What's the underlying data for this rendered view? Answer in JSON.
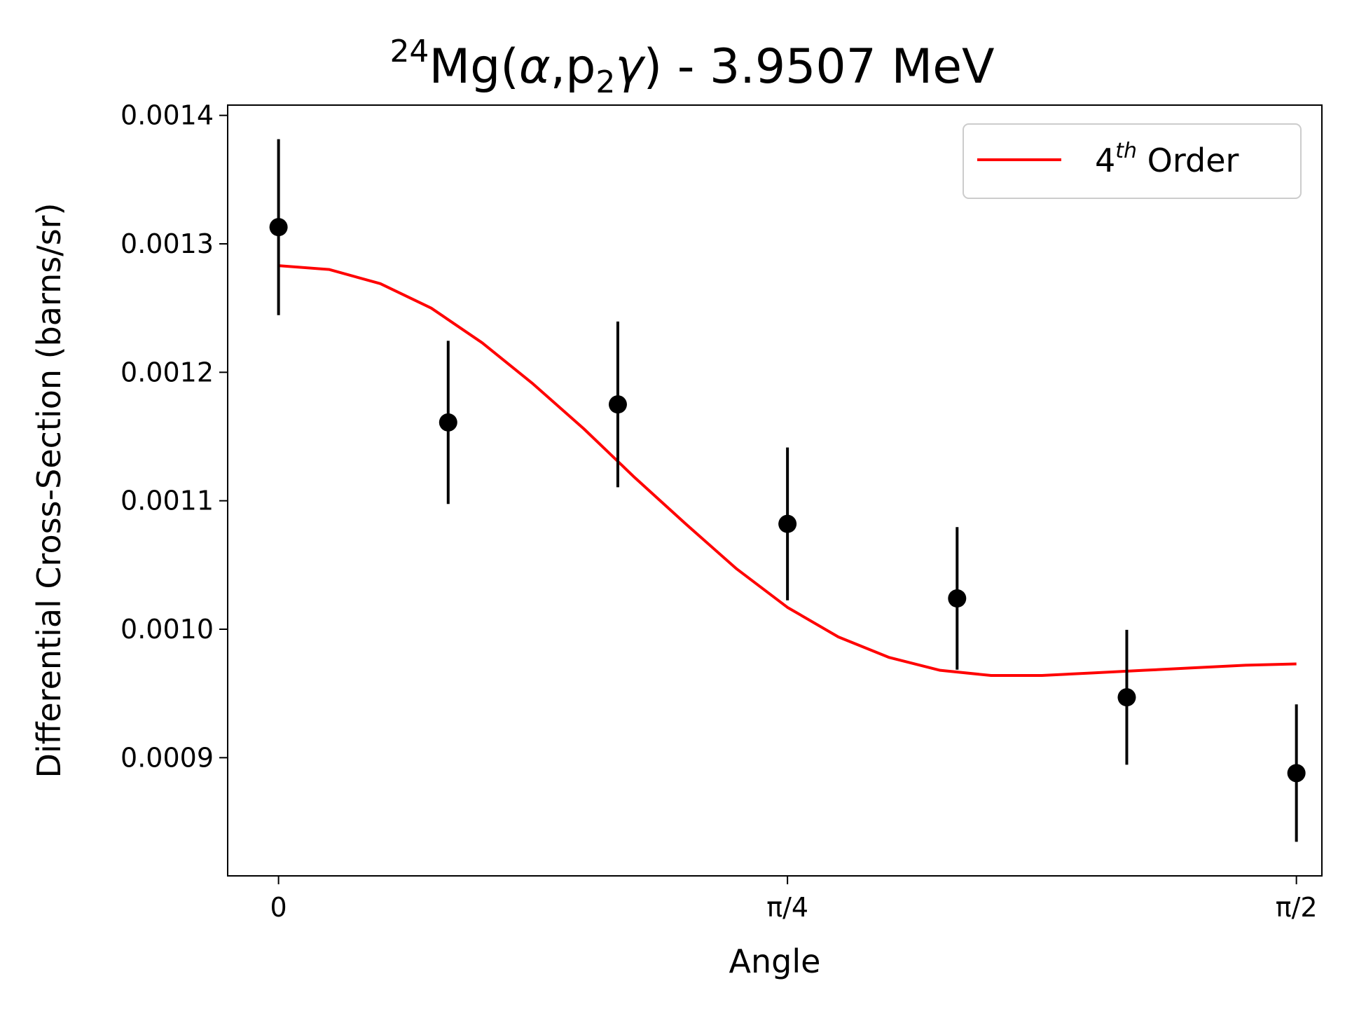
{
  "chart_data": {
    "type": "scatter",
    "title": {
      "mass_number": "24",
      "prefix": "Mg(",
      "alpha": "α",
      "comma": ",p",
      "sub": "2",
      "gamma": "γ",
      "suffix": ") - 3.9507 MeV"
    },
    "xlabel": "Angle",
    "ylabel": "Differential Cross-Section (barns/sr)",
    "xlim": [
      -0.0785,
      1.6101
    ],
    "ylim": [
      0.000808,
      0.001408
    ],
    "x_ticks": [
      {
        "value": 0,
        "label": "0"
      },
      {
        "value": 0.785398,
        "label": "π/4"
      },
      {
        "value": 1.570796,
        "label": "π/2"
      }
    ],
    "y_ticks": [
      {
        "value": 0.0009,
        "label": "0.0009"
      },
      {
        "value": 0.001,
        "label": "0.0010"
      },
      {
        "value": 0.0011,
        "label": "0.0011"
      },
      {
        "value": 0.0012,
        "label": "0.0012"
      },
      {
        "value": 0.0013,
        "label": "0.0013"
      },
      {
        "value": 0.0014,
        "label": "0.0014"
      }
    ],
    "grid": false,
    "legend": {
      "placement": "top-right",
      "entries": [
        {
          "base": "4",
          "sup": "th",
          "rest": " Order",
          "color": "#ff0000"
        }
      ]
    },
    "series": [
      {
        "kind": "errorbar",
        "color": "#000000",
        "x": [
          0,
          0.261799,
          0.523599,
          0.785398,
          1.047198,
          1.308997,
          1.570796
        ],
        "y": [
          0.001313,
          0.001161,
          0.001175,
          0.001082,
          0.001024,
          0.000947,
          0.000888
        ],
        "yerr": [
          6.85e-05,
          6.35e-05,
          6.45e-05,
          5.95e-05,
          5.55e-05,
          5.25e-05,
          5.35e-05
        ]
      },
      {
        "kind": "line",
        "name": "4th Order",
        "color": "#ff0000",
        "x": [
          0,
          0.0785,
          0.1571,
          0.2356,
          0.3142,
          0.3927,
          0.4712,
          0.5498,
          0.6283,
          0.7069,
          0.7854,
          0.8639,
          0.9425,
          1.021,
          1.0996,
          1.1781,
          1.2566,
          1.3352,
          1.4137,
          1.4923,
          1.5708
        ],
        "y": [
          0.001283,
          0.00128,
          0.001269,
          0.00125,
          0.001223,
          0.001191,
          0.001156,
          0.001118,
          0.001082,
          0.001047,
          0.001017,
          0.000994,
          0.000978,
          0.000968,
          0.000964,
          0.000964,
          0.000966,
          0.000968,
          0.00097,
          0.000972,
          0.000973
        ]
      }
    ]
  }
}
